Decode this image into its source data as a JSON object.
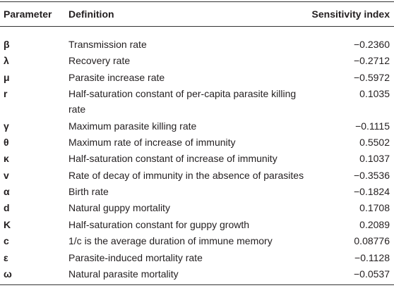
{
  "table": {
    "header": [
      "Parameter",
      "Definition",
      "Sensitivity index"
    ],
    "rows": [
      [
        "β",
        "Transmission rate",
        "−0.2360"
      ],
      [
        "λ",
        "Recovery rate",
        "−0.2712"
      ],
      [
        "μ",
        "Parasite increase rate",
        "−0.5972"
      ],
      [
        "r",
        "Half-saturation constant of per-capita parasite killing rate",
        "0.1035"
      ],
      [
        "γ",
        "Maximum parasite killing rate",
        "−0.1115"
      ],
      [
        "θ",
        "Maximum rate of increase of immunity",
        "0.5502"
      ],
      [
        "κ",
        "Half-saturation constant of increase of immunity",
        "0.1037"
      ],
      [
        "v",
        "Rate of decay of immunity in the absence of parasites",
        "−0.3536"
      ],
      [
        "α",
        "Birth rate",
        "−0.1824"
      ],
      [
        "d",
        "Natural guppy mortality",
        "0.1708"
      ],
      [
        "K",
        "Half-saturation constant for guppy growth",
        "0.2089"
      ],
      [
        "c",
        "1/c is the average duration of immune memory",
        "0.08776"
      ],
      [
        "ε",
        "Parasite-induced mortality rate",
        "−0.1128"
      ],
      [
        "ω",
        "Natural parasite mortality",
        "−0.0537"
      ]
    ]
  }
}
